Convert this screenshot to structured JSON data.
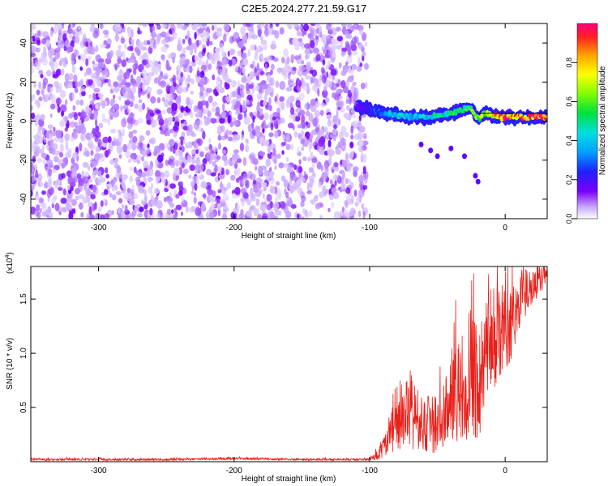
{
  "title": "C2E5.2024.277.21.59.G17",
  "chart_data": [
    {
      "type": "heatmap",
      "title": "C2E5.2024.277.21.59.G17",
      "xlabel": "Height of straight line (km)",
      "ylabel": "Frequency (Hz)",
      "xlim": [
        -350,
        31
      ],
      "ylim": [
        -50,
        50
      ],
      "xticks": [
        -300,
        -200,
        -100,
        0
      ],
      "yticks": [
        -40,
        -20,
        0,
        20,
        40
      ],
      "colorbar": {
        "label": "Normalized spectral amplitude",
        "range": [
          0,
          1
        ],
        "ticks": [
          "0.0",
          "0.2",
          "0.4",
          "0.6",
          "0.8"
        ],
        "tick_values": [
          0,
          0.2,
          0.4,
          0.6,
          0.8
        ]
      },
      "noise_region_x": [
        -350,
        -108
      ],
      "signal_track": {
        "x": [
          -110,
          -100,
          -90,
          -80,
          -70,
          -60,
          -50,
          -40,
          -30,
          -25,
          -20,
          -15,
          -10,
          -5,
          0,
          10,
          20,
          31
        ],
        "freq": [
          8,
          6,
          4,
          3,
          2,
          2,
          3,
          4,
          6,
          7,
          1,
          4,
          3,
          2,
          2,
          2,
          2,
          2
        ],
        "amplitude": [
          0.15,
          0.25,
          0.35,
          0.45,
          0.4,
          0.45,
          0.5,
          0.55,
          0.6,
          0.65,
          0.7,
          0.75,
          0.85,
          0.9,
          0.95,
          0.98,
          0.98,
          0.98
        ]
      },
      "side_branch": {
        "x": [
          -62,
          -55,
          -50,
          -40,
          -30,
          -22,
          -20
        ],
        "freq": [
          -12,
          -15,
          -18,
          -14,
          -18,
          -28,
          -31
        ]
      },
      "colors": {
        "noise_light": "#d8b8f8",
        "noise_dark": "#6a00f0",
        "track_edge": "#3a00c8",
        "track_mid": "#00d0d0",
        "track_high": "#30e030",
        "track_peak": "#ff2020"
      }
    },
    {
      "type": "line",
      "xlabel": "Height of straight line (km)",
      "ylabel": "SNR (10 * v/v)",
      "yscale_label": "(x10",
      "yscale_exponent": "4",
      "xlim": [
        -350,
        31
      ],
      "ylim": [
        0,
        1.8
      ],
      "xticks": [
        -300,
        -200,
        -100,
        0
      ],
      "yticks": [
        0.5,
        1.0,
        1.5
      ],
      "ytick_labels": [
        "0.5",
        "1.0",
        "1.5"
      ],
      "series": [
        {
          "name": "SNR",
          "color": "#e8201a",
          "x": [
            -350,
            -300,
            -250,
            -200,
            -150,
            -110,
            -100,
            -95,
            -90,
            -85,
            -80,
            -75,
            -70,
            -65,
            -60,
            -55,
            -50,
            -45,
            -40,
            -35,
            -30,
            -25,
            -20,
            -15,
            -10,
            -5,
            0,
            5,
            10,
            15,
            20,
            25,
            31
          ],
          "y": [
            0.02,
            0.02,
            0.02,
            0.03,
            0.02,
            0.02,
            0.02,
            0.05,
            0.12,
            0.28,
            0.32,
            0.38,
            0.45,
            0.42,
            0.3,
            0.38,
            0.32,
            0.45,
            0.52,
            0.62,
            0.7,
            0.85,
            0.72,
            0.95,
            1.1,
            1.2,
            1.25,
            1.3,
            1.45,
            1.55,
            1.62,
            1.68,
            1.72
          ],
          "spread": [
            0.01,
            0.01,
            0.01,
            0.01,
            0.01,
            0.01,
            0.01,
            0.04,
            0.1,
            0.2,
            0.22,
            0.3,
            0.4,
            0.3,
            0.25,
            0.3,
            0.28,
            0.35,
            0.4,
            0.5,
            0.55,
            0.6,
            0.55,
            0.6,
            0.5,
            0.45,
            0.4,
            0.35,
            0.3,
            0.25,
            0.2,
            0.15,
            0.1
          ]
        }
      ]
    }
  ]
}
